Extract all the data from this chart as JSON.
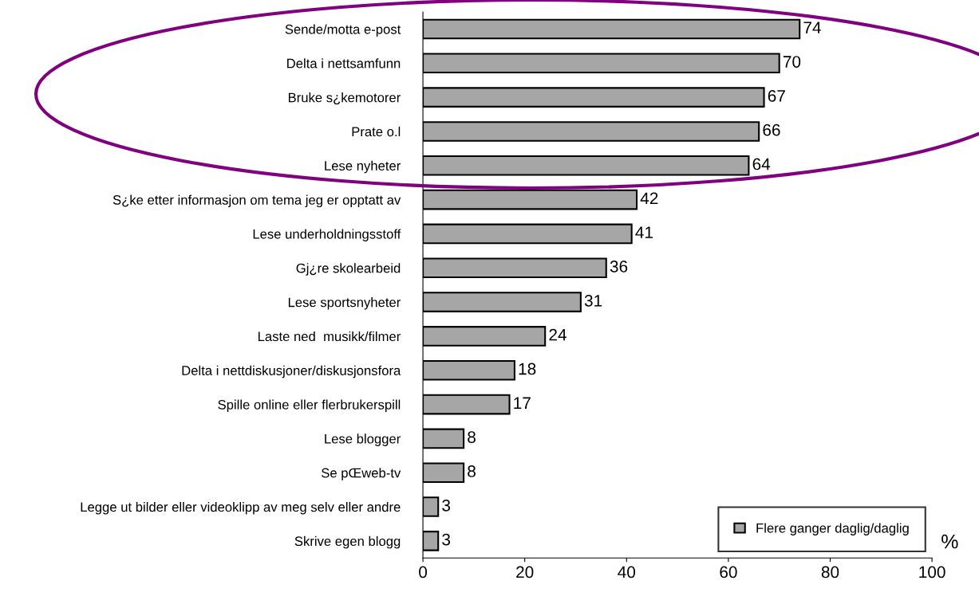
{
  "chart_data": {
    "type": "bar",
    "orientation": "horizontal",
    "categories": [
      "Sende/motta e-post",
      "Delta i nettsamfunn",
      "Bruke s¿kemotorer",
      "Prate o.l",
      "Lese nyheter",
      "S¿ke etter informasjon om tema jeg er opptatt av",
      "Lese underholdningsstoff",
      "Gj¿re skolearbeid",
      "Lese sportsnyheter",
      "Laste ned  musikk/filmer",
      "Delta i nettdiskusjoner/diskusjonsfora",
      "Spille online eller flerbrukerspill",
      "Lese blogger",
      "Se pŒweb-tv",
      "Legge ut bilder eller videoklipp av meg selv eller andre",
      "Skrive egen blogg"
    ],
    "series": [
      {
        "name": "Flere ganger daglig/daglig",
        "color": "#a6a6a6",
        "values": [
          74,
          70,
          67,
          66,
          64,
          42,
          41,
          36,
          31,
          24,
          18,
          17,
          8,
          8,
          3,
          3
        ]
      }
    ],
    "xlabel": "%",
    "xlim": [
      0,
      100
    ],
    "xticks": [
      0,
      20,
      40,
      60,
      80,
      100
    ],
    "data_labels": true,
    "legend": "bottom right",
    "grid": false
  }
}
